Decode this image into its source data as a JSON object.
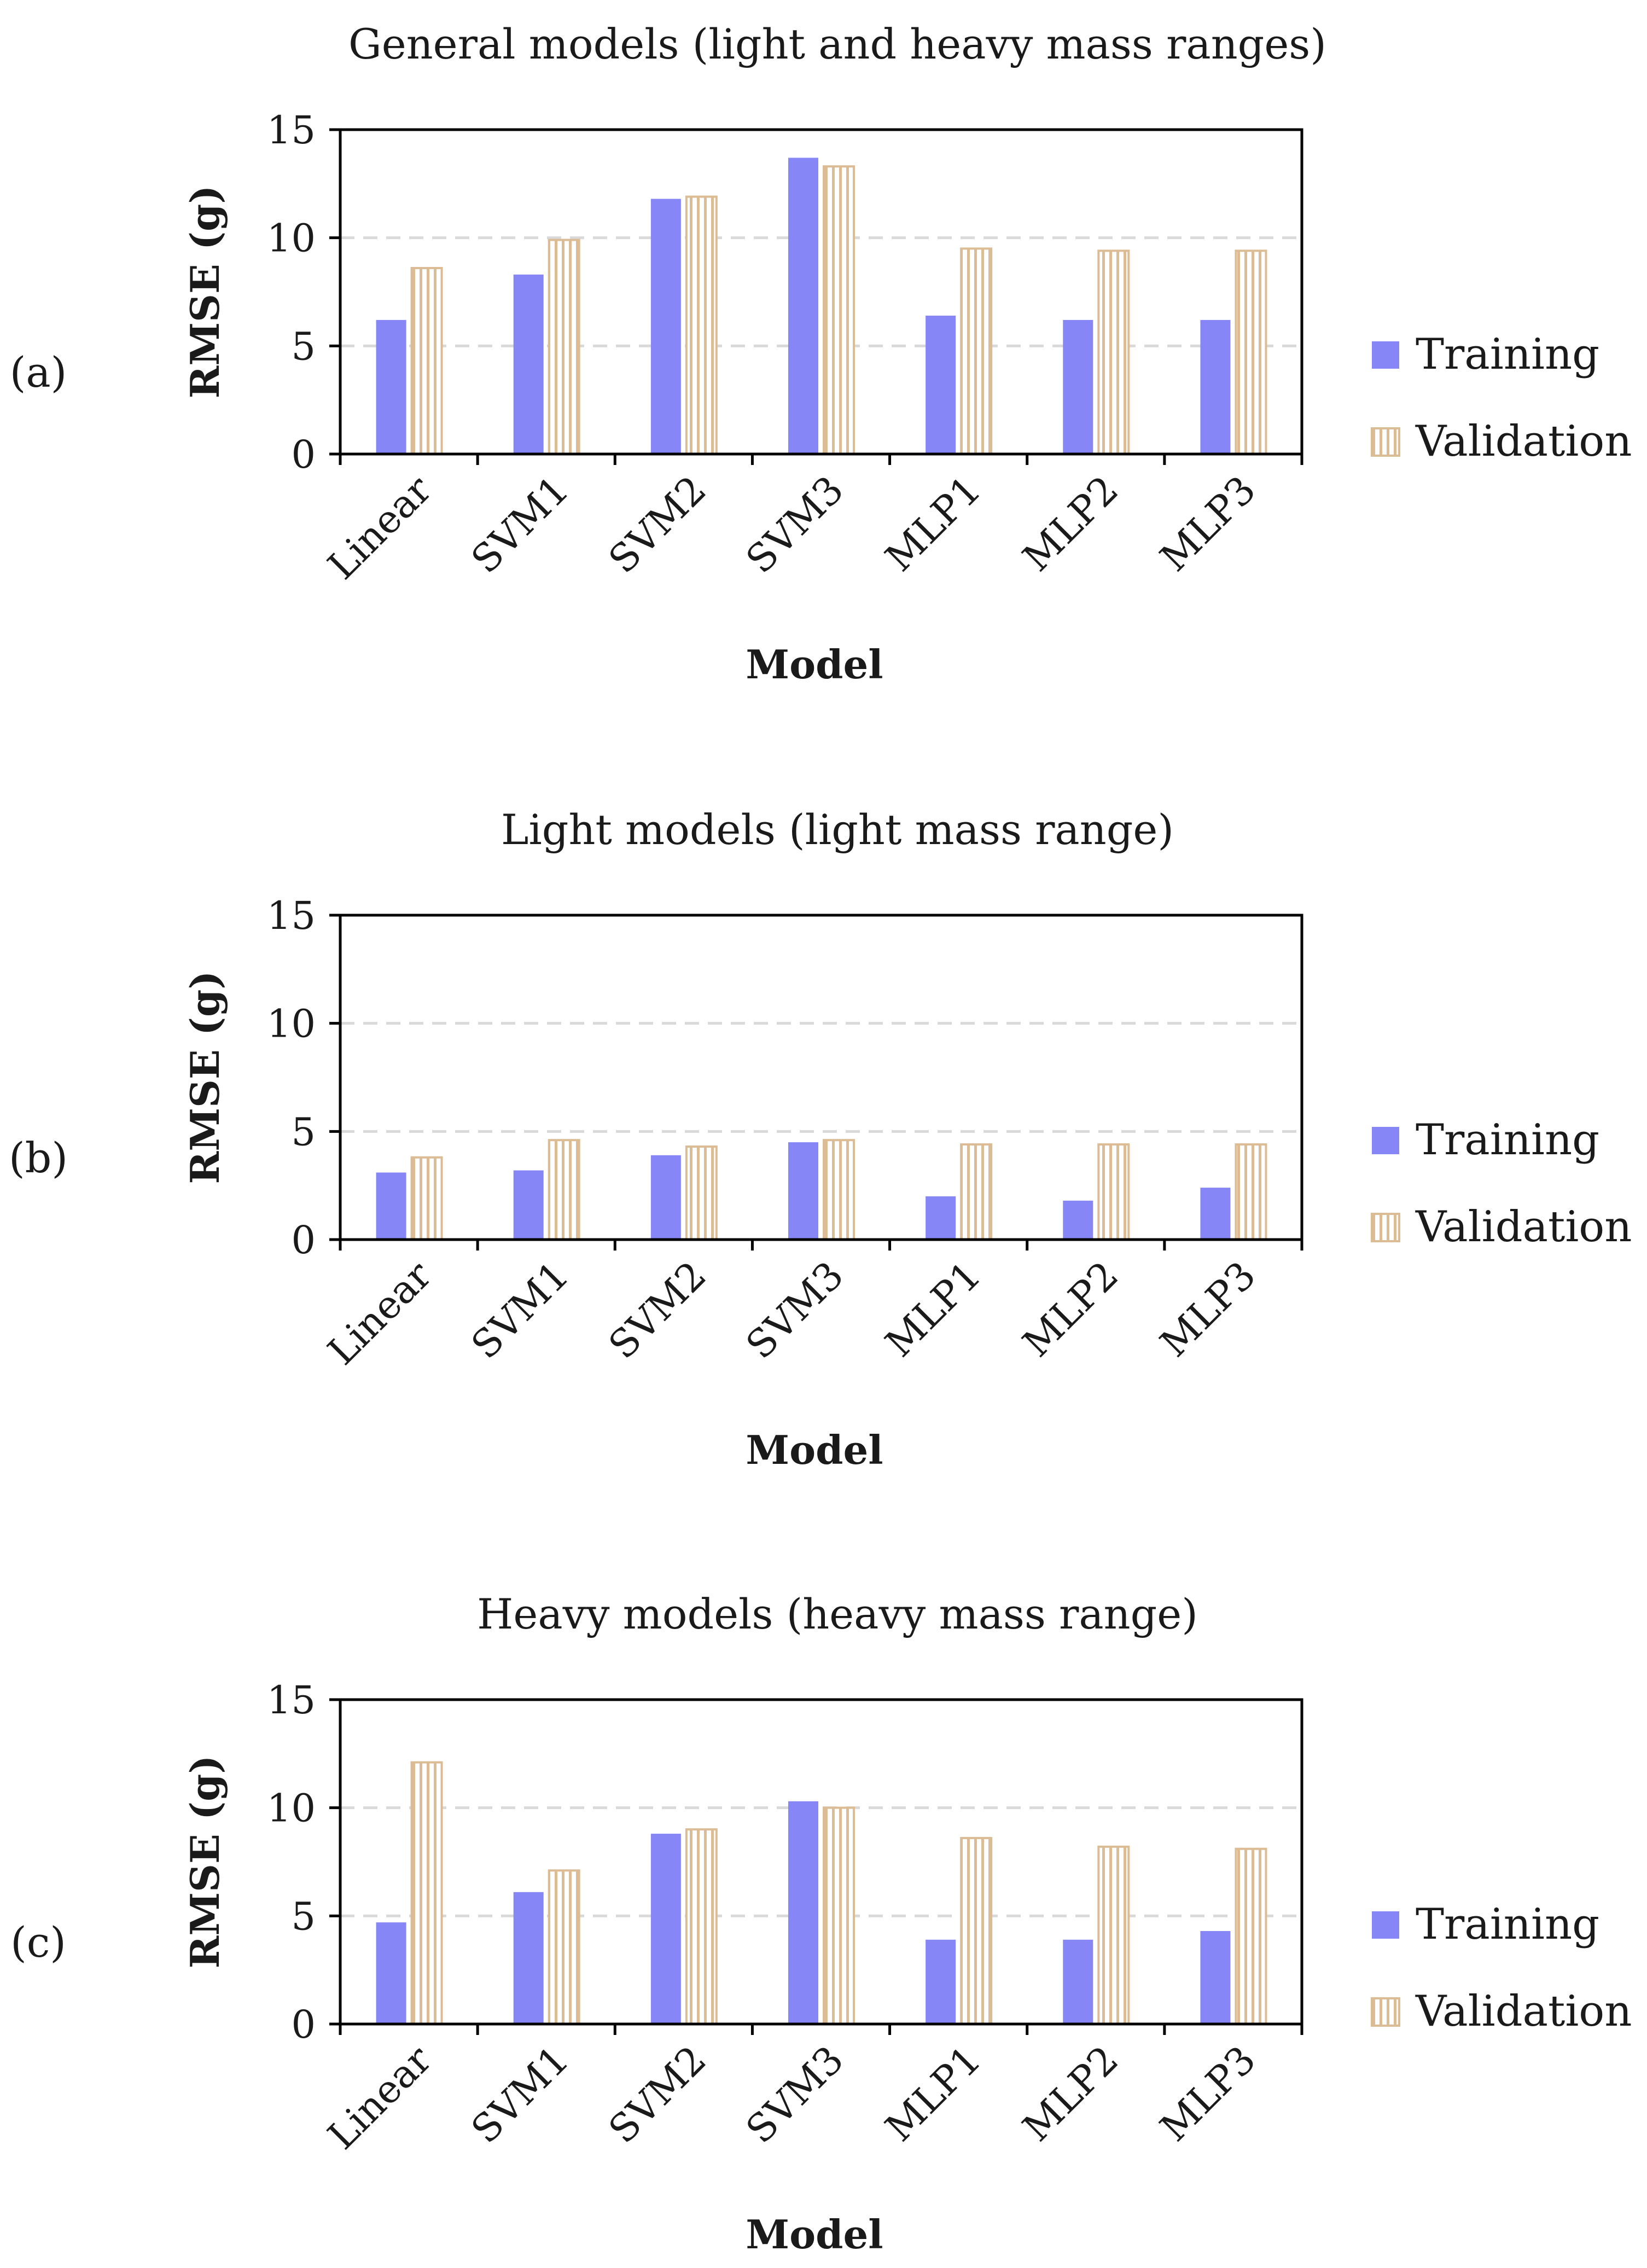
{
  "chart_data": [
    {
      "type": "bar",
      "panel_label": "(a)",
      "title": "General models (light and heavy mass ranges)",
      "xlabel": "Model",
      "ylabel": "RMSE (g)",
      "ylim": [
        0,
        15
      ],
      "yticks": [
        0,
        5,
        10,
        15
      ],
      "grid": true,
      "legend_position": "right",
      "categories": [
        "Linear",
        "SVM1",
        "SVM2",
        "SVM3",
        "MLP1",
        "MLP2",
        "MLP3"
      ],
      "series": [
        {
          "name": "Training",
          "values": [
            6.2,
            8.3,
            11.8,
            13.7,
            6.4,
            6.2,
            6.2
          ]
        },
        {
          "name": "Validation",
          "values": [
            8.6,
            9.9,
            11.9,
            13.3,
            9.5,
            9.4,
            9.4
          ]
        }
      ]
    },
    {
      "type": "bar",
      "panel_label": "(b)",
      "title": "Light models (light mass range)",
      "xlabel": "Model",
      "ylabel": "RMSE (g)",
      "ylim": [
        0,
        15
      ],
      "yticks": [
        0,
        5,
        10,
        15
      ],
      "grid": true,
      "legend_position": "right",
      "categories": [
        "Linear",
        "SVM1",
        "SVM2",
        "SVM3",
        "MLP1",
        "MLP2",
        "MLP3"
      ],
      "series": [
        {
          "name": "Training",
          "values": [
            3.1,
            3.2,
            3.9,
            4.5,
            2.0,
            1.8,
            2.4
          ]
        },
        {
          "name": "Validation",
          "values": [
            3.8,
            4.6,
            4.3,
            4.6,
            4.4,
            4.4,
            4.4
          ]
        }
      ]
    },
    {
      "type": "bar",
      "panel_label": "(c)",
      "title": "Heavy models (heavy mass range)",
      "xlabel": "Model",
      "ylabel": "RMSE (g)",
      "ylim": [
        0,
        15
      ],
      "yticks": [
        0,
        5,
        10,
        15
      ],
      "grid": true,
      "legend_position": "right",
      "categories": [
        "Linear",
        "SVM1",
        "SVM2",
        "SVM3",
        "MLP1",
        "MLP2",
        "MLP3"
      ],
      "series": [
        {
          "name": "Training",
          "values": [
            4.7,
            6.1,
            8.8,
            10.3,
            3.9,
            3.9,
            4.3
          ]
        },
        {
          "name": "Validation",
          "values": [
            12.1,
            7.1,
            9.0,
            10.0,
            8.6,
            8.2,
            8.1
          ]
        }
      ]
    }
  ],
  "colors": {
    "training": "#8686f6",
    "validation_fill": "#ffffff",
    "validation_stripe": "#dcbc94",
    "axis": "#000000",
    "grid": "#d9d9d9"
  }
}
